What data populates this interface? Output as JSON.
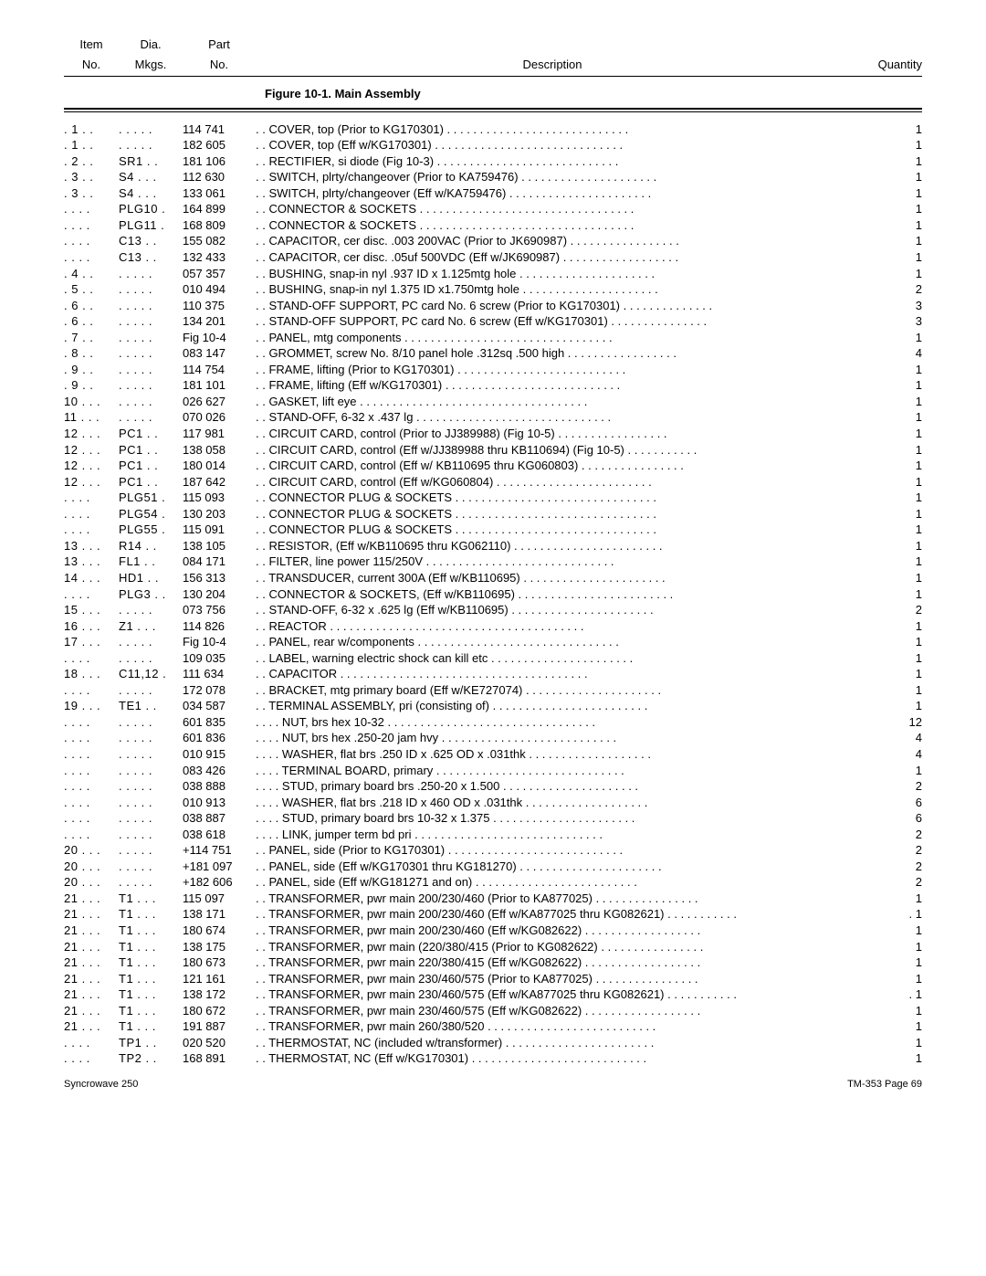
{
  "header": {
    "item_l1": "Item",
    "item_l2": "No.",
    "dia_l1": "Dia.",
    "dia_l2": "Mkgs.",
    "part_l1": "Part",
    "part_l2": "No.",
    "description": "Description",
    "quantity": "Quantity"
  },
  "figure_title": "Figure 10-1. Main Assembly",
  "footer_left": "Syncrowave 250",
  "footer_right": "TM-353 Page 69",
  "rows": [
    {
      "item": ". 1",
      "dia": "",
      "part": "114 741",
      "indent": ". .",
      "desc": "COVER, top (Prior to KG170301)",
      "qty": "1"
    },
    {
      "item": ". 1",
      "dia": "",
      "part": "182 605",
      "indent": ". .",
      "desc": "COVER, top (Eff w/KG170301)",
      "qty": "1"
    },
    {
      "item": ". 2",
      "dia": "SR1",
      "part": "181 106",
      "indent": ". .",
      "desc": "RECTIFIER, si diode (Fig 10-3)",
      "qty": "1"
    },
    {
      "item": ". 3",
      "dia": "S4",
      "part": "112 630",
      "indent": ". .",
      "desc": "SWITCH, plrty/changeover (Prior to KA759476)",
      "qty": "1"
    },
    {
      "item": ". 3",
      "dia": "S4",
      "part": "133 061",
      "indent": ". .",
      "desc": "SWITCH, plrty/changeover (Eff w/KA759476)",
      "qty": "1"
    },
    {
      "item": "",
      "dia": "PLG10",
      "part": "164 899",
      "indent": ". .",
      "desc": "CONNECTOR & SOCKETS",
      "qty": "1"
    },
    {
      "item": "",
      "dia": "PLG11",
      "part": "168 809",
      "indent": ". .",
      "desc": "CONNECTOR & SOCKETS",
      "qty": "1"
    },
    {
      "item": "",
      "dia": "C13",
      "part": "155 082",
      "indent": ". .",
      "desc": "CAPACITOR, cer disc. .003 200VAC (Prior to JK690987)",
      "qty": "1"
    },
    {
      "item": "",
      "dia": "C13",
      "part": "132 433",
      "indent": ". .",
      "desc": "CAPACITOR, cer disc. .05uf 500VDC (Eff w/JK690987)",
      "qty": "1"
    },
    {
      "item": ". 4",
      "dia": "",
      "part": "057 357",
      "indent": ". .",
      "desc": "BUSHING, snap-in nyl .937 ID x 1.125mtg hole",
      "qty": "1"
    },
    {
      "item": ". 5",
      "dia": "",
      "part": "010 494",
      "indent": ". .",
      "desc": "BUSHING, snap-in nyl 1.375 ID x1.750mtg hole",
      "qty": "2"
    },
    {
      "item": ". 6",
      "dia": "",
      "part": "110 375",
      "indent": ". .",
      "desc": "STAND-OFF SUPPORT, PC card No. 6 screw (Prior to KG170301)",
      "qty": "3"
    },
    {
      "item": ". 6",
      "dia": "",
      "part": "134 201",
      "indent": ". .",
      "desc": "STAND-OFF SUPPORT, PC card No. 6 screw (Eff w/KG170301)",
      "qty": "3"
    },
    {
      "item": ". 7",
      "dia": "",
      "part": "Fig 10-4",
      "indent": ". .",
      "desc": "PANEL, mtg components",
      "qty": "1"
    },
    {
      "item": ". 8",
      "dia": "",
      "part": "083 147",
      "indent": ". .",
      "desc": "GROMMET, screw No. 8/10 panel hole .312sq .500 high",
      "qty": "4"
    },
    {
      "item": ". 9",
      "dia": "",
      "part": "114 754",
      "indent": ". .",
      "desc": "FRAME, lifting (Prior to KG170301)",
      "qty": "1"
    },
    {
      "item": ". 9",
      "dia": "",
      "part": "181 101",
      "indent": ". .",
      "desc": "FRAME, lifting (Eff w/KG170301)",
      "qty": "1"
    },
    {
      "item": "10",
      "dia": "",
      "part": "026 627",
      "indent": ". .",
      "desc": "GASKET, lift eye",
      "qty": "1"
    },
    {
      "item": "11",
      "dia": "",
      "part": "070 026",
      "indent": ". .",
      "desc": "STAND-OFF, 6-32 x .437 lg",
      "qty": "1"
    },
    {
      "item": "12",
      "dia": "PC1",
      "part": "117 981",
      "indent": ". .",
      "desc": "CIRCUIT CARD, control (Prior to JJ389988) (Fig 10-5)",
      "qty": "1"
    },
    {
      "item": "12",
      "dia": "PC1",
      "part": "138 058",
      "indent": ". .",
      "desc": "CIRCUIT CARD, control (Eff w/JJ389988 thru KB110694) (Fig 10-5)",
      "qty": "1"
    },
    {
      "item": "12",
      "dia": "PC1",
      "part": "180 014",
      "indent": ". .",
      "desc": "CIRCUIT CARD, control (Eff w/ KB110695 thru KG060803)",
      "qty": "1"
    },
    {
      "item": "12",
      "dia": "PC1",
      "part": "187 642",
      "indent": ". .",
      "desc": "CIRCUIT CARD, control (Eff w/KG060804)",
      "qty": "1"
    },
    {
      "item": "",
      "dia": "PLG51",
      "part": "115 093",
      "indent": ". .",
      "desc": "CONNECTOR PLUG & SOCKETS",
      "qty": "1"
    },
    {
      "item": "",
      "dia": "PLG54",
      "part": "130 203",
      "indent": ". .",
      "desc": "CONNECTOR PLUG & SOCKETS",
      "qty": "1"
    },
    {
      "item": "",
      "dia": "PLG55",
      "part": "115 091",
      "indent": ". .",
      "desc": "CONNECTOR PLUG & SOCKETS",
      "qty": "1"
    },
    {
      "item": "13",
      "dia": "R14",
      "part": "138 105",
      "indent": ". .",
      "desc": "RESISTOR, (Eff w/KB110695 thru KG062110)",
      "qty": "1"
    },
    {
      "item": "13",
      "dia": "FL1",
      "part": "084 171",
      "indent": ". .",
      "desc": "FILTER, line power 115/250V",
      "qty": "1"
    },
    {
      "item": "14",
      "dia": "HD1",
      "part": "156 313",
      "indent": ". .",
      "desc": "TRANSDUCER, current 300A (Eff w/KB110695)",
      "qty": "1"
    },
    {
      "item": "",
      "dia": "PLG3",
      "part": "130 204",
      "indent": ". .",
      "desc": "CONNECTOR & SOCKETS, (Eff w/KB110695)",
      "qty": "1"
    },
    {
      "item": "15",
      "dia": "",
      "part": "073 756",
      "indent": ". .",
      "desc": "STAND-OFF, 6-32 x .625 lg (Eff w/KB110695)",
      "qty": "2"
    },
    {
      "item": "16",
      "dia": "Z1",
      "part": "114 826",
      "indent": ". .",
      "desc": "REACTOR",
      "qty": "1"
    },
    {
      "item": "17",
      "dia": "",
      "part": "Fig 10-4",
      "indent": ". .",
      "desc": "PANEL, rear w/components",
      "qty": "1"
    },
    {
      "item": "",
      "dia": "",
      "part": "109 035",
      "indent": ". .",
      "desc": "LABEL, warning electric shock can kill etc",
      "qty": "1"
    },
    {
      "item": "18",
      "dia": "C11,12",
      "part": "111 634",
      "indent": ". .",
      "desc": "CAPACITOR",
      "qty": "1"
    },
    {
      "item": "",
      "dia": "",
      "part": "172 078",
      "indent": ". .",
      "desc": "BRACKET, mtg primary board (Eff w/KE727074)",
      "qty": "1"
    },
    {
      "item": "19",
      "dia": "TE1",
      "part": "034 587",
      "indent": ". .",
      "desc": "TERMINAL ASSEMBLY, pri (consisting of)",
      "qty": "1"
    },
    {
      "item": "",
      "dia": "",
      "part": "601 835",
      "indent": ". . . .",
      "desc": "NUT, brs hex 10-32",
      "qty": "12"
    },
    {
      "item": "",
      "dia": "",
      "part": "601 836",
      "indent": ". . . .",
      "desc": "NUT, brs hex .250-20 jam hvy",
      "qty": "4"
    },
    {
      "item": "",
      "dia": "",
      "part": "010 915",
      "indent": ". . . .",
      "desc": "WASHER, flat brs .250 ID x .625 OD x .031thk",
      "qty": "4"
    },
    {
      "item": "",
      "dia": "",
      "part": "083 426",
      "indent": ". . . .",
      "desc": "TERMINAL BOARD, primary",
      "qty": "1"
    },
    {
      "item": "",
      "dia": "",
      "part": "038 888",
      "indent": ". . . .",
      "desc": "STUD, primary board brs .250-20 x 1.500",
      "qty": "2"
    },
    {
      "item": "",
      "dia": "",
      "part": "010 913",
      "indent": ". . . .",
      "desc": "WASHER, flat brs .218 ID x 460 OD x .031thk",
      "qty": "6"
    },
    {
      "item": "",
      "dia": "",
      "part": "038 887",
      "indent": ". . . .",
      "desc": "STUD, primary board brs 10-32 x 1.375",
      "qty": "6"
    },
    {
      "item": "",
      "dia": "",
      "part": "038 618",
      "indent": ". . . .",
      "desc": "LINK, jumper term bd pri",
      "qty": "2"
    },
    {
      "item": "20",
      "dia": "",
      "part": "+114 751",
      "indent": ". .",
      "desc": "PANEL, side (Prior to KG170301)",
      "qty": "2"
    },
    {
      "item": "20",
      "dia": "",
      "part": "+181 097",
      "indent": ". .",
      "desc": "PANEL, side (Eff w/KG170301 thru KG181270)",
      "qty": "2"
    },
    {
      "item": "20",
      "dia": "",
      "part": "+182 606",
      "indent": ". .",
      "desc": "PANEL, side (Eff w/KG181271 and on)",
      "qty": "2"
    },
    {
      "item": "21",
      "dia": "T1",
      "part": "115 097",
      "indent": ". .",
      "desc": "TRANSFORMER, pwr main 200/230/460 (Prior to KA877025)",
      "qty": "1"
    },
    {
      "item": "21",
      "dia": "T1",
      "part": "138 171",
      "indent": ". .",
      "desc": "TRANSFORMER, pwr main 200/230/460 (Eff w/KA877025 thru KG082621)",
      "qty": ". 1"
    },
    {
      "item": "21",
      "dia": "T1",
      "part": "180 674",
      "indent": ". .",
      "desc": "TRANSFORMER, pwr main 200/230/460 (Eff w/KG082622)",
      "qty": "1"
    },
    {
      "item": "21",
      "dia": "T1",
      "part": "138 175",
      "indent": ". .",
      "desc": "TRANSFORMER, pwr main (220/380/415 (Prior to KG082622)",
      "qty": "1"
    },
    {
      "item": "21",
      "dia": "T1",
      "part": "180 673",
      "indent": ". .",
      "desc": "TRANSFORMER, pwr main 220/380/415 (Eff w/KG082622)",
      "qty": "1"
    },
    {
      "item": "21",
      "dia": "T1",
      "part": "121 161",
      "indent": ". .",
      "desc": "TRANSFORMER, pwr main 230/460/575 (Prior to KA877025)",
      "qty": "1"
    },
    {
      "item": "21",
      "dia": "T1",
      "part": "138 172",
      "indent": ". .",
      "desc": "TRANSFORMER, pwr main 230/460/575 (Eff w/KA877025 thru KG082621)",
      "qty": ". 1"
    },
    {
      "item": "21",
      "dia": "T1",
      "part": "180 672",
      "indent": ". .",
      "desc": "TRANSFORMER, pwr main 230/460/575 (Eff w/KG082622)",
      "qty": "1"
    },
    {
      "item": "21",
      "dia": "T1",
      "part": "191 887",
      "indent": ". .",
      "desc": "TRANSFORMER, pwr main 260/380/520",
      "qty": "1"
    },
    {
      "item": "",
      "dia": "TP1",
      "part": "020 520",
      "indent": ". .",
      "desc": "THERMOSTAT, NC (included w/transformer)",
      "qty": "1"
    },
    {
      "item": "",
      "dia": "TP2",
      "part": "168 891",
      "indent": ". .",
      "desc": "THERMOSTAT, NC (Eff w/KG170301)",
      "qty": "1"
    }
  ]
}
